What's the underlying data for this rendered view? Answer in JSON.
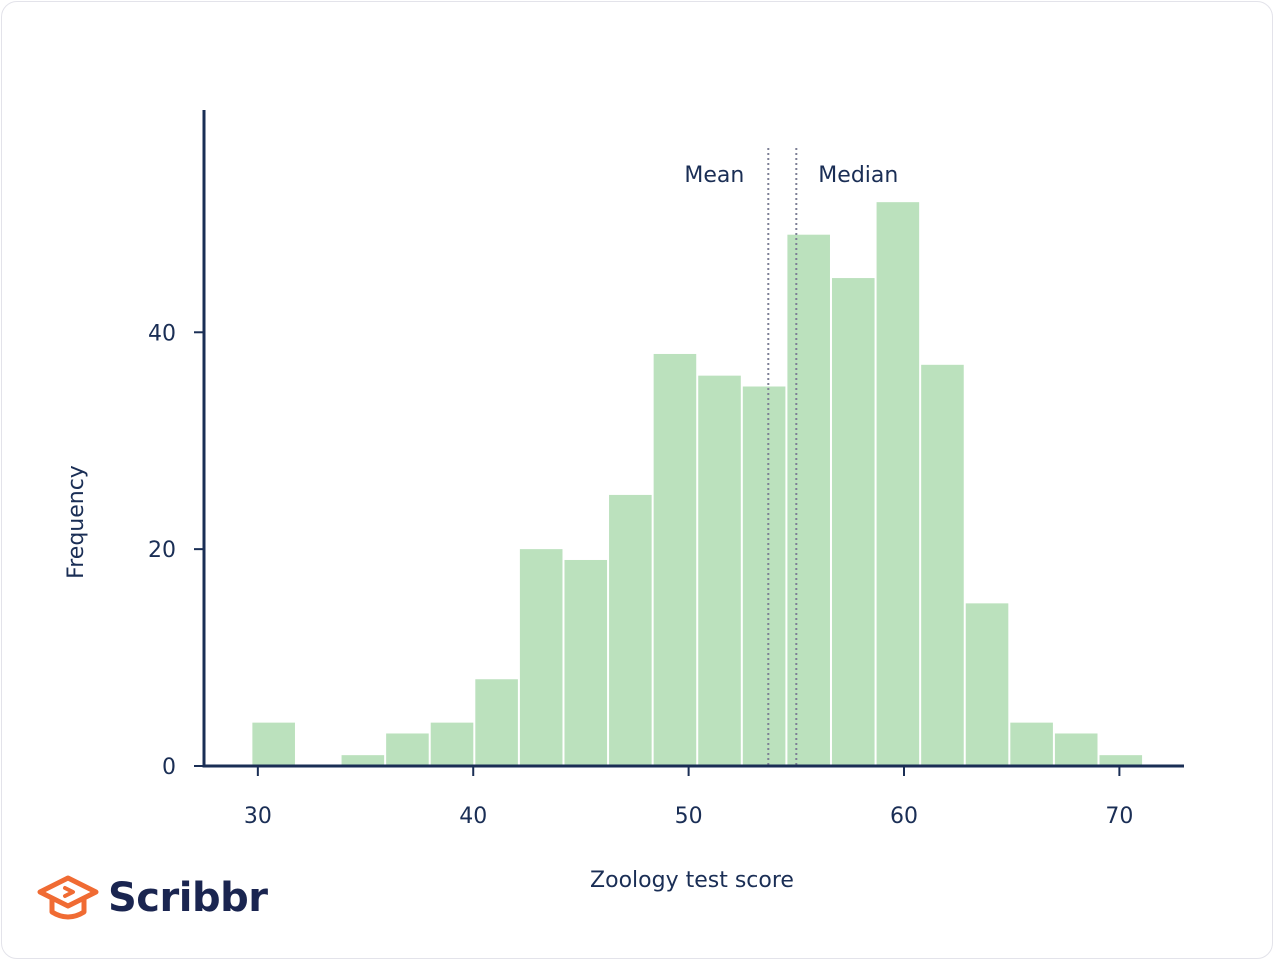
{
  "chart_data": {
    "type": "bar",
    "title": "",
    "xlabel": "Zoology test score",
    "ylabel": "Frequency",
    "bin_width": 2.07,
    "bins": [
      {
        "start": 29.7,
        "value": 4
      },
      {
        "start": 31.77,
        "value": 0
      },
      {
        "start": 33.84,
        "value": 1
      },
      {
        "start": 35.91,
        "value": 3
      },
      {
        "start": 37.98,
        "value": 4
      },
      {
        "start": 40.05,
        "value": 8
      },
      {
        "start": 42.12,
        "value": 20
      },
      {
        "start": 44.19,
        "value": 19
      },
      {
        "start": 46.26,
        "value": 25
      },
      {
        "start": 48.33,
        "value": 38
      },
      {
        "start": 50.4,
        "value": 36
      },
      {
        "start": 52.47,
        "value": 35
      },
      {
        "start": 54.54,
        "value": 49
      },
      {
        "start": 56.61,
        "value": 45
      },
      {
        "start": 58.68,
        "value": 52
      },
      {
        "start": 60.75,
        "value": 37
      },
      {
        "start": 62.82,
        "value": 15
      },
      {
        "start": 64.89,
        "value": 4
      },
      {
        "start": 66.96,
        "value": 3
      },
      {
        "start": 69.03,
        "value": 1
      }
    ],
    "xlim": [
      27.5,
      73.0
    ],
    "ylim": [
      0,
      60.5
    ],
    "xticks": [
      30,
      40,
      50,
      60,
      70
    ],
    "yticks": [
      0,
      20,
      40
    ],
    "bar_color": "#bbe1bd",
    "axis_color": "#1a2e55",
    "markers": [
      {
        "label": "Mean",
        "value": 53.7,
        "label_side": "left"
      },
      {
        "label": "Median",
        "value": 55.0,
        "label_side": "right"
      }
    ],
    "grid": false,
    "legend": "none"
  },
  "brand": {
    "name": "Scribbr",
    "icon": "graduation-cap-icon",
    "icon_color": "#f06b33",
    "text_color": "#1a2550"
  }
}
